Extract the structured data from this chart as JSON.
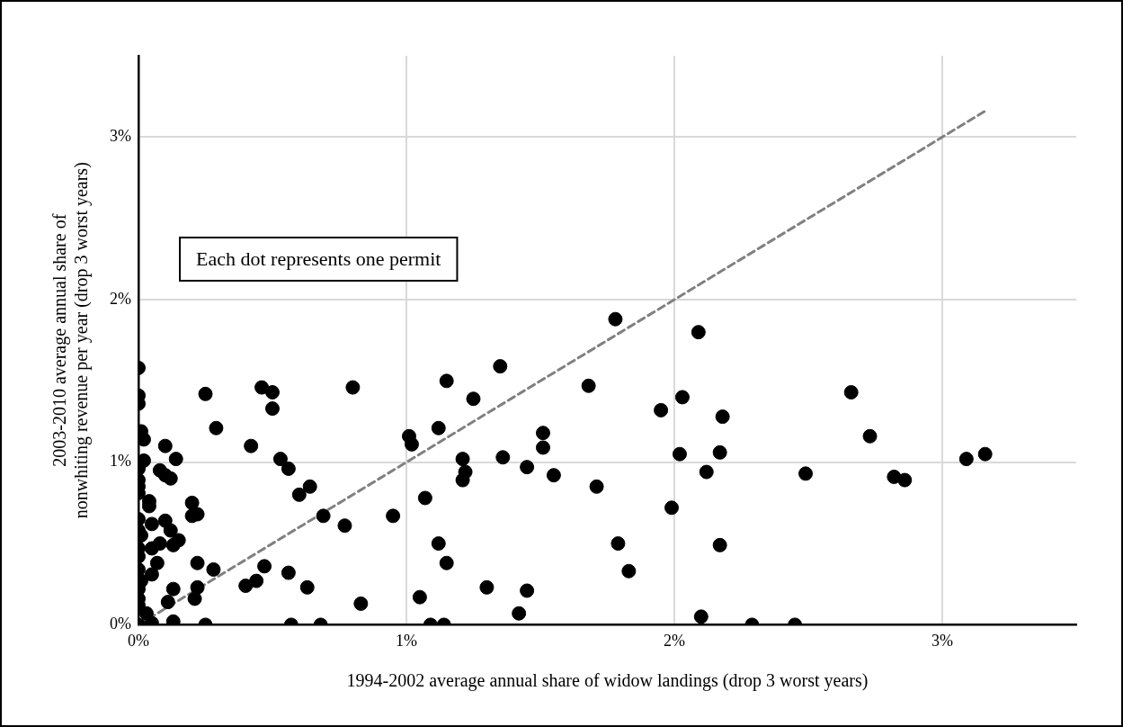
{
  "chart_data": {
    "type": "scatter",
    "xlabel": "1994-2002 average annual share of widow landings (drop 3 worst years)",
    "ylabel": "2003-2010 average annual share of nonwhiting revenue per year (drop 3 worst years)",
    "annotations": [
      "Each dot represents one permit"
    ],
    "xlim": [
      0,
      3.5
    ],
    "ylim": [
      0,
      3.5
    ],
    "xticks": [
      {
        "value": 0,
        "label": "0%"
      },
      {
        "value": 1,
        "label": "1%"
      },
      {
        "value": 2,
        "label": "2%"
      },
      {
        "value": 3,
        "label": "3%"
      }
    ],
    "yticks": [
      {
        "value": 0,
        "label": "0%"
      },
      {
        "value": 1,
        "label": "1%"
      },
      {
        "value": 2,
        "label": "2%"
      },
      {
        "value": 3,
        "label": "3%"
      }
    ],
    "grid": true,
    "legend": false,
    "series": [
      {
        "type": "scatter",
        "color": "#000000",
        "marker": "circle",
        "x": [
          0.0,
          0.0,
          0.0,
          0.01,
          0.02,
          0.02,
          0.0,
          0.0,
          0.0,
          0.0,
          0.04,
          0.04,
          0.0,
          0.0,
          0.01,
          0.0,
          0.0,
          0.0,
          0.05,
          0.01,
          0.0,
          0.0,
          0.0,
          0.03,
          0.0,
          0.05,
          0.1,
          0.14,
          0.08,
          0.1,
          0.12,
          0.2,
          0.2,
          0.22,
          0.05,
          0.1,
          0.12,
          0.15,
          0.13,
          0.05,
          0.08,
          0.07,
          0.22,
          0.28,
          0.13,
          0.22,
          0.11,
          0.21,
          0.13,
          0.25,
          0.25,
          0.29,
          0.42,
          0.46,
          0.5,
          0.5,
          0.53,
          0.56,
          0.6,
          0.4,
          0.44,
          0.47,
          0.56,
          0.57,
          0.64,
          0.69,
          0.77,
          0.8,
          0.95,
          1.01,
          1.02,
          1.07,
          1.12,
          1.15,
          1.25,
          1.35,
          1.68,
          1.21,
          1.22,
          1.21,
          1.36,
          1.45,
          1.51,
          1.51,
          1.55,
          1.71,
          1.12,
          1.15,
          0.63,
          0.83,
          1.05,
          1.3,
          1.45,
          1.42,
          0.68,
          1.09,
          1.14,
          1.78,
          2.09,
          1.95,
          2.03,
          2.18,
          2.02,
          2.17,
          2.12,
          2.49,
          2.66,
          2.73,
          1.99,
          1.79,
          1.83,
          2.17,
          2.1,
          2.29,
          2.45,
          2.82,
          2.86,
          3.09,
          3.16
        ],
        "values": [
          1.58,
          1.41,
          1.36,
          1.19,
          1.14,
          1.01,
          0.96,
          0.89,
          0.85,
          0.81,
          0.76,
          0.73,
          0.65,
          0.58,
          0.55,
          0.47,
          0.42,
          0.34,
          0.31,
          0.27,
          0.22,
          0.16,
          0.12,
          0.07,
          0.0,
          0.01,
          1.1,
          1.02,
          0.95,
          0.92,
          0.9,
          0.75,
          0.67,
          0.68,
          0.62,
          0.64,
          0.58,
          0.52,
          0.49,
          0.47,
          0.5,
          0.38,
          0.38,
          0.34,
          0.22,
          0.23,
          0.14,
          0.16,
          0.02,
          0.0,
          1.42,
          1.21,
          1.1,
          1.46,
          1.43,
          1.33,
          1.02,
          0.96,
          0.8,
          0.24,
          0.27,
          0.36,
          0.32,
          0.0,
          0.85,
          0.67,
          0.61,
          1.46,
          0.67,
          1.16,
          1.11,
          0.78,
          1.21,
          1.5,
          1.39,
          1.59,
          1.47,
          1.02,
          0.94,
          0.89,
          1.03,
          0.97,
          1.18,
          1.09,
          0.92,
          0.85,
          0.5,
          0.38,
          0.23,
          0.13,
          0.17,
          0.23,
          0.21,
          0.07,
          0.0,
          0.0,
          0.0,
          1.88,
          1.8,
          1.32,
          1.4,
          1.28,
          1.05,
          1.06,
          0.94,
          0.93,
          1.43,
          1.16,
          0.72,
          0.5,
          0.33,
          0.49,
          0.05,
          0.0,
          0.0,
          0.91,
          0.89,
          1.02,
          1.05
        ]
      },
      {
        "type": "line",
        "color": "#808080",
        "marker": "none",
        "line_style": "dashed",
        "x": [
          0,
          3.16
        ],
        "values": [
          0,
          3.16
        ]
      }
    ]
  }
}
